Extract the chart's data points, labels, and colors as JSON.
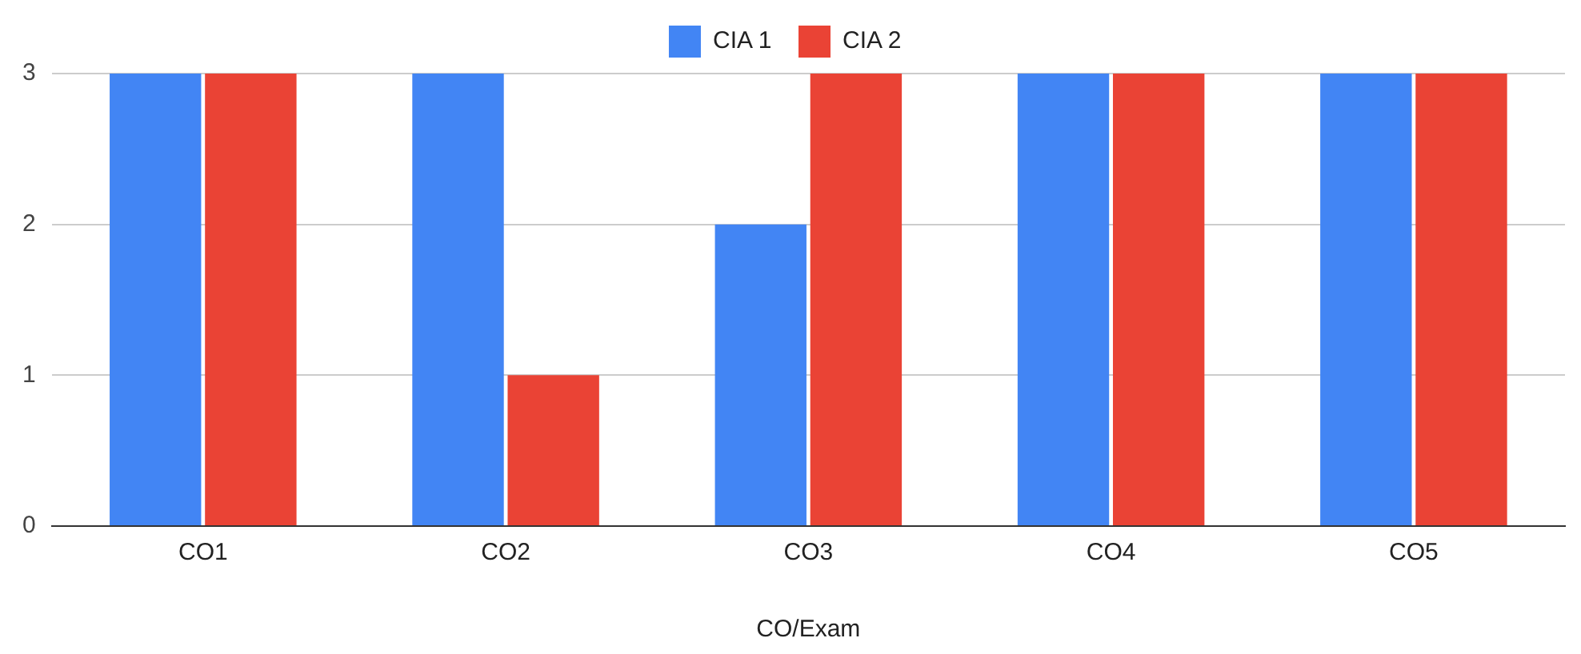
{
  "chart_data": {
    "type": "bar",
    "xlabel": "CO/Exam",
    "categories": [
      "CO1",
      "CO2",
      "CO3",
      "CO4",
      "CO5"
    ],
    "series": [
      {
        "name": "CIA 1",
        "color": "#4285f4",
        "values": [
          3,
          3,
          2,
          3,
          3
        ]
      },
      {
        "name": "CIA 2",
        "color": "#ea4335",
        "values": [
          3,
          1,
          3,
          3,
          3
        ]
      }
    ],
    "ylim": [
      0,
      3
    ],
    "yticks": [
      0,
      1,
      2,
      3
    ],
    "grid": "y",
    "legend": "top"
  }
}
